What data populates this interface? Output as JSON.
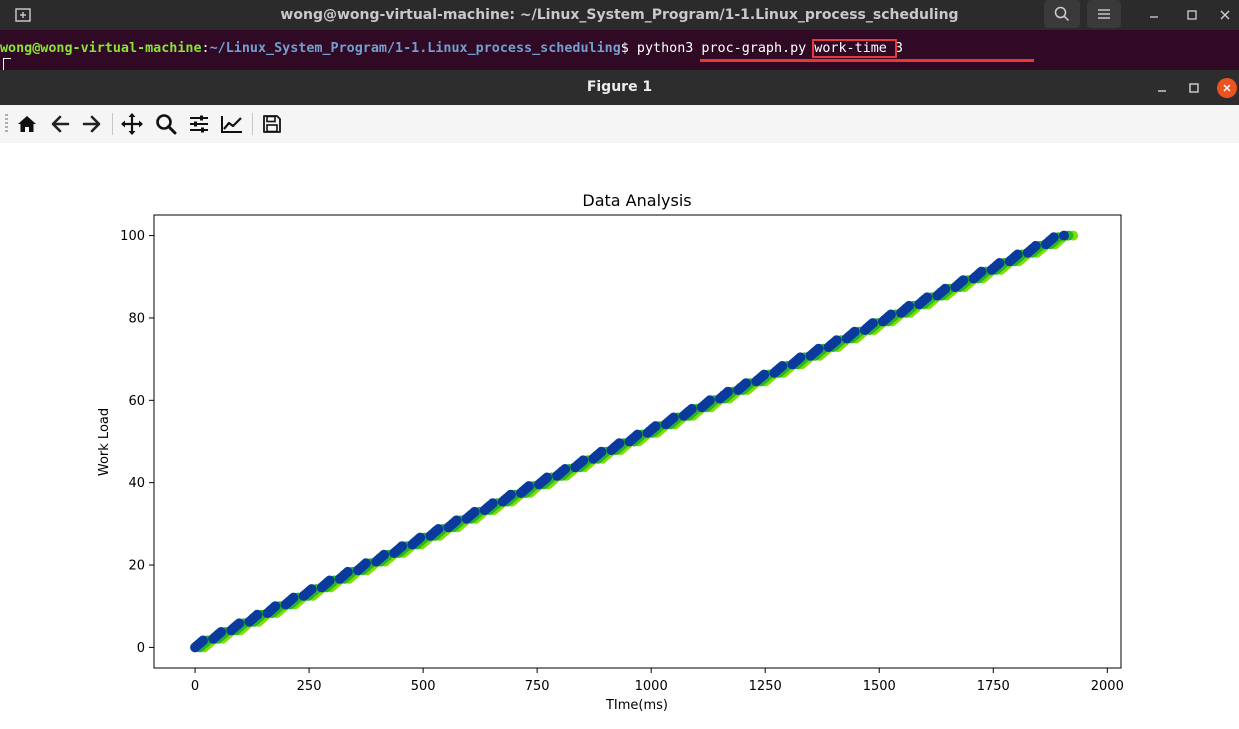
{
  "terminal": {
    "title": "wong@wong-virtual-machine: ~/Linux_System_Program/1-1.Linux_process_scheduling",
    "prompt_user": "wong@wong-virtual-machine",
    "prompt_colon": ":",
    "prompt_path": "~/Linux_System_Program/1-1.Linux_process_scheduling",
    "prompt_dollar": "$",
    "command_pre": " python3 proc-graph.py ",
    "command_boxed": "work-time ",
    "command_post": "3"
  },
  "figure": {
    "title": "Figure 1"
  },
  "toolbar": {
    "tools": [
      "home-icon",
      "back-icon",
      "forward-icon",
      "pan-icon",
      "zoom-icon",
      "configure-subplots-icon",
      "edit-axis-icon",
      "save-icon"
    ]
  },
  "colors": {
    "terminal_bg": "#300a24",
    "prompt_user": "#8ae234",
    "prompt_path": "#729fcf",
    "series_1": "#7fe000",
    "series_2": "#27b52a",
    "series_3": "#0a3a9c",
    "highlight": "#e53935"
  },
  "chart_data": {
    "type": "scatter",
    "title": "Data Analysis",
    "xlabel": "TIme(ms)",
    "ylabel": "Work Load",
    "xlim": [
      -90,
      2030
    ],
    "ylim": [
      -5,
      105
    ],
    "xticks": [
      0,
      250,
      500,
      750,
      1000,
      1250,
      1500,
      1750,
      2000
    ],
    "yticks": [
      0,
      20,
      40,
      60,
      80,
      100
    ],
    "grid": false,
    "series": [
      {
        "color": "#7fe000",
        "start": [
          20,
          0
        ],
        "end": [
          1925,
          100
        ]
      },
      {
        "color": "#27b52a",
        "start": [
          10,
          0
        ],
        "end": [
          1915,
          100
        ]
      },
      {
        "color": "#0a3a9c",
        "start": [
          0,
          0
        ],
        "end": [
          1905,
          100
        ]
      }
    ]
  }
}
